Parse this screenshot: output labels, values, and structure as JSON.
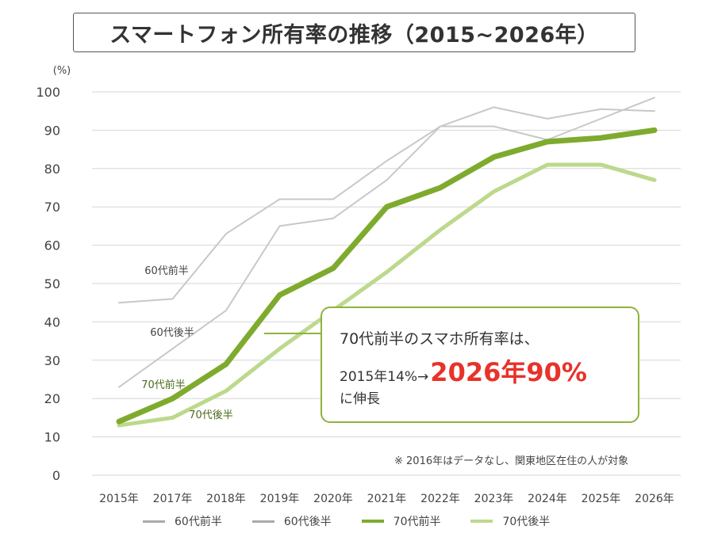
{
  "chart_data": {
    "type": "line",
    "title": "スマートフォン所有率の推移（2015~2026年）",
    "y_unit": "(%)",
    "ylim": [
      0,
      100
    ],
    "yticks": [
      0,
      10,
      20,
      30,
      40,
      50,
      60,
      70,
      80,
      90,
      100
    ],
    "categories": [
      "2015年",
      "2017年",
      "2018年",
      "2019年",
      "2020年",
      "2021年",
      "2022年",
      "2023年",
      "2024年",
      "2025年",
      "2026年"
    ],
    "grid": true,
    "series": [
      {
        "name": "60代前半",
        "color": "#c8c8c8",
        "values": [
          45,
          46,
          63,
          72,
          72,
          82,
          91,
          96,
          93,
          95.5,
          95
        ]
      },
      {
        "name": "60代後半",
        "color": "#c8c8c8",
        "values": [
          23,
          33,
          43,
          65,
          67,
          77,
          91,
          91,
          87.5,
          93,
          98.5
        ]
      },
      {
        "name": "70代前半",
        "color": "#7eab2e",
        "values": [
          14,
          20,
          29,
          47,
          54,
          70,
          75,
          83,
          87,
          88,
          90
        ]
      },
      {
        "name": "70代後半",
        "color": "#bcd98c",
        "values": [
          13,
          15,
          22,
          33,
          43,
          53,
          64,
          74,
          81,
          81,
          77
        ]
      }
    ],
    "legend": {
      "placement": "bottom",
      "entries": [
        {
          "name": "60代前半",
          "color": "#aaaaaa"
        },
        {
          "name": "60代後半",
          "color": "#aaaaaa"
        },
        {
          "name": "70代前半",
          "color": "#7eab2e"
        },
        {
          "name": "70代後半",
          "color": "#bcd98c"
        }
      ]
    },
    "annotations": {
      "series_labels": [
        "60代前半",
        "60代後半",
        "70代前半",
        "70代後半"
      ],
      "callout": {
        "line1": "70代前半のスマホ所有率は、",
        "line2_prefix": "2015年14%→",
        "line2_highlight": "2026年90%",
        "line3": "に伸長"
      },
      "note": "※ 2016年はデータなし、関東地区在住の人が対象"
    }
  }
}
